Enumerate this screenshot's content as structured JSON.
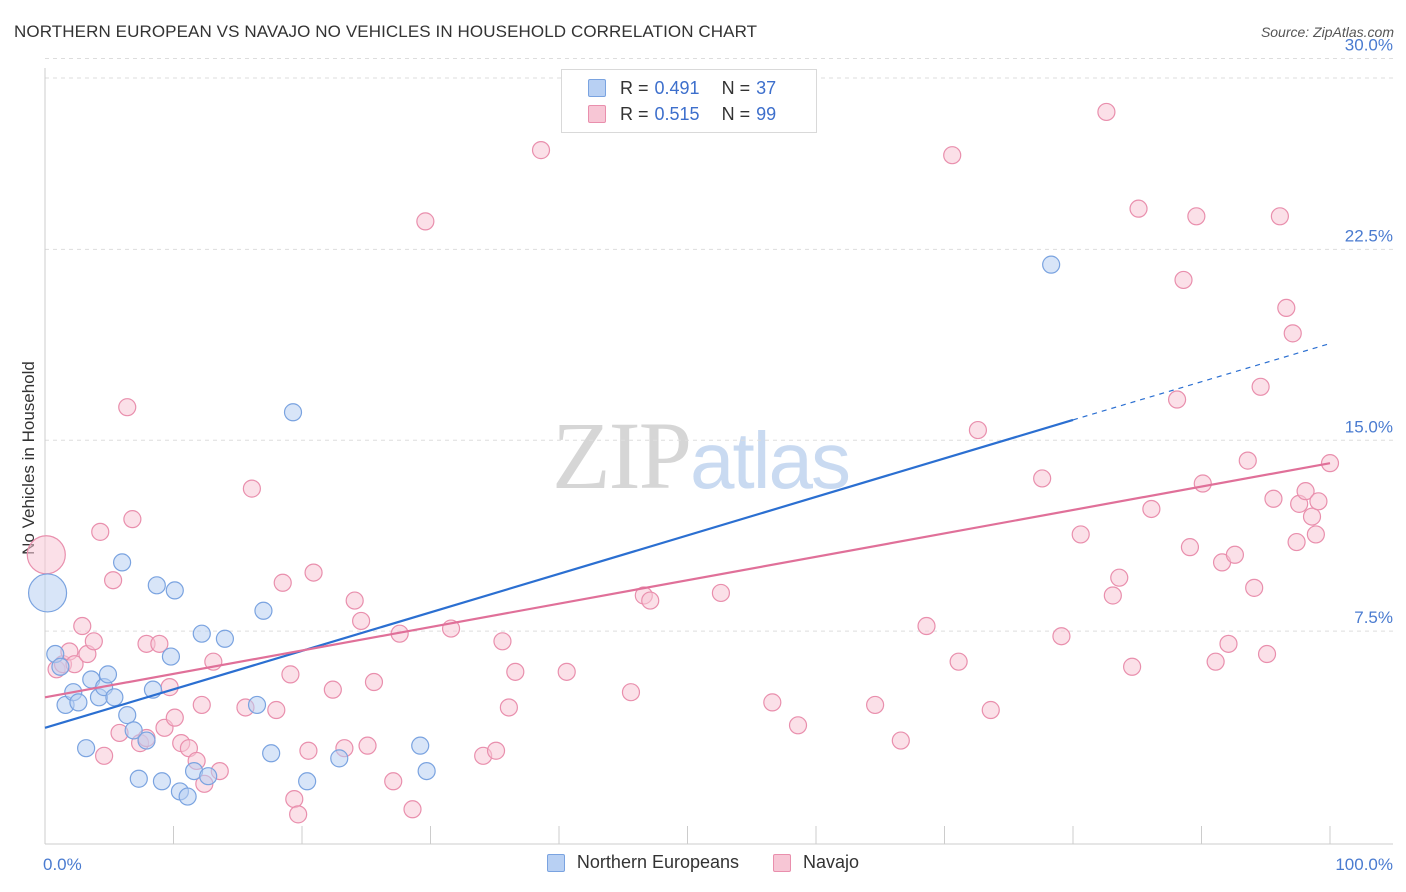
{
  "title": "NORTHERN EUROPEAN VS NAVAJO NO VEHICLES IN HOUSEHOLD CORRELATION CHART",
  "source": "Source: ZipAtlas.com",
  "watermark": {
    "zip": "ZIP",
    "atlas": "atlas"
  },
  "colors": {
    "blue_fill": "#b8d0f3",
    "blue_stroke": "#7aa3e0",
    "blue_line": "#2b6fd1",
    "pink_fill": "#f7c6d5",
    "pink_stroke": "#e98fad",
    "pink_line": "#e07099",
    "grid": "#dddddd",
    "axis_text": "#4a7bd0"
  },
  "legend": {
    "series": [
      {
        "r_label": "R =",
        "r_value": "0.491",
        "n_label": "N =",
        "n_value": "37"
      },
      {
        "r_label": "R =",
        "r_value": "0.515",
        "n_label": "N =",
        "n_value": "99"
      }
    ]
  },
  "bottom_legend": [
    "Northern Europeans",
    "Navajo"
  ],
  "chart_data": {
    "type": "scatter",
    "title": "NORTHERN EUROPEAN VS NAVAJO NO VEHICLES IN HOUSEHOLD CORRELATION CHART",
    "xlabel": "",
    "ylabel": "No Vehicles in Household",
    "x_tick_labels": [
      "0.0%",
      "100.0%"
    ],
    "y_tick_labels": [
      "7.5%",
      "15.0%",
      "22.5%",
      "30.0%"
    ],
    "y_ticks": [
      7.5,
      15.0,
      22.5,
      30.0
    ],
    "xlim": [
      0,
      100
    ],
    "ylim": [
      0,
      30.8
    ],
    "grid": true,
    "legend_position": "top-center",
    "series": [
      {
        "name": "Northern Europeans",
        "r": 0.491,
        "n": 37,
        "trend": {
          "x0": 0,
          "y0": 3.7,
          "x1": 80,
          "y1": 15.8,
          "dashed_to_x": 100,
          "dashed_to_y": 18.8
        },
        "points": [
          {
            "x": 0.2,
            "y": 9.0,
            "big": true
          },
          {
            "x": 0.8,
            "y": 6.6
          },
          {
            "x": 1.2,
            "y": 6.1
          },
          {
            "x": 1.6,
            "y": 4.6
          },
          {
            "x": 2.2,
            "y": 5.1
          },
          {
            "x": 2.6,
            "y": 4.7
          },
          {
            "x": 3.2,
            "y": 2.9
          },
          {
            "x": 3.6,
            "y": 5.6
          },
          {
            "x": 4.2,
            "y": 4.9
          },
          {
            "x": 4.6,
            "y": 5.3
          },
          {
            "x": 4.9,
            "y": 5.8
          },
          {
            "x": 5.4,
            "y": 4.9
          },
          {
            "x": 6.0,
            "y": 10.2
          },
          {
            "x": 6.4,
            "y": 4.2
          },
          {
            "x": 6.9,
            "y": 3.6
          },
          {
            "x": 7.3,
            "y": 1.7
          },
          {
            "x": 7.9,
            "y": 3.2
          },
          {
            "x": 8.4,
            "y": 5.2
          },
          {
            "x": 8.7,
            "y": 9.3
          },
          {
            "x": 9.1,
            "y": 1.6
          },
          {
            "x": 9.8,
            "y": 6.5
          },
          {
            "x": 10.1,
            "y": 9.1
          },
          {
            "x": 10.5,
            "y": 1.2
          },
          {
            "x": 11.1,
            "y": 1.0
          },
          {
            "x": 11.6,
            "y": 2.0
          },
          {
            "x": 12.2,
            "y": 7.4
          },
          {
            "x": 12.7,
            "y": 1.8
          },
          {
            "x": 14.0,
            "y": 7.2
          },
          {
            "x": 16.5,
            "y": 4.6
          },
          {
            "x": 17.0,
            "y": 8.3
          },
          {
            "x": 17.6,
            "y": 2.7
          },
          {
            "x": 19.3,
            "y": 16.1
          },
          {
            "x": 20.4,
            "y": 1.6
          },
          {
            "x": 22.9,
            "y": 2.5
          },
          {
            "x": 29.2,
            "y": 3.0
          },
          {
            "x": 29.7,
            "y": 2.0
          },
          {
            "x": 78.3,
            "y": 21.9
          }
        ]
      },
      {
        "name": "Navajo",
        "r": 0.515,
        "n": 99,
        "trend": {
          "x0": 0,
          "y0": 4.9,
          "x1": 100,
          "y1": 14.1
        },
        "points": [
          {
            "x": 0.1,
            "y": 10.5,
            "big": true
          },
          {
            "x": 0.9,
            "y": 6.0
          },
          {
            "x": 1.4,
            "y": 6.2
          },
          {
            "x": 1.9,
            "y": 6.7
          },
          {
            "x": 2.3,
            "y": 6.2
          },
          {
            "x": 2.9,
            "y": 7.7
          },
          {
            "x": 3.3,
            "y": 6.6
          },
          {
            "x": 3.8,
            "y": 7.1
          },
          {
            "x": 4.3,
            "y": 11.4
          },
          {
            "x": 4.6,
            "y": 2.6
          },
          {
            "x": 5.3,
            "y": 9.5
          },
          {
            "x": 5.8,
            "y": 3.5
          },
          {
            "x": 6.4,
            "y": 16.3
          },
          {
            "x": 6.8,
            "y": 11.9
          },
          {
            "x": 7.4,
            "y": 3.1
          },
          {
            "x": 7.9,
            "y": 3.3
          },
          {
            "x": 7.9,
            "y": 7.0
          },
          {
            "x": 8.9,
            "y": 7.0
          },
          {
            "x": 9.3,
            "y": 3.7
          },
          {
            "x": 9.7,
            "y": 5.3
          },
          {
            "x": 10.1,
            "y": 4.1
          },
          {
            "x": 10.6,
            "y": 3.1
          },
          {
            "x": 11.2,
            "y": 2.9
          },
          {
            "x": 11.8,
            "y": 2.4
          },
          {
            "x": 12.2,
            "y": 4.6
          },
          {
            "x": 12.4,
            "y": 1.5
          },
          {
            "x": 13.1,
            "y": 6.3
          },
          {
            "x": 13.6,
            "y": 2.0
          },
          {
            "x": 15.6,
            "y": 4.5
          },
          {
            "x": 16.1,
            "y": 13.1
          },
          {
            "x": 18.0,
            "y": 4.4
          },
          {
            "x": 18.5,
            "y": 9.4
          },
          {
            "x": 19.1,
            "y": 5.8
          },
          {
            "x": 19.4,
            "y": 0.9
          },
          {
            "x": 19.7,
            "y": 0.3
          },
          {
            "x": 20.5,
            "y": 2.8
          },
          {
            "x": 20.9,
            "y": 9.8
          },
          {
            "x": 22.4,
            "y": 5.2
          },
          {
            "x": 23.3,
            "y": 2.9
          },
          {
            "x": 24.1,
            "y": 8.7
          },
          {
            "x": 24.6,
            "y": 7.9
          },
          {
            "x": 25.1,
            "y": 3.0
          },
          {
            "x": 25.6,
            "y": 5.5
          },
          {
            "x": 27.1,
            "y": 1.6
          },
          {
            "x": 27.6,
            "y": 7.4
          },
          {
            "x": 28.6,
            "y": 0.5
          },
          {
            "x": 29.6,
            "y": 23.6
          },
          {
            "x": 31.6,
            "y": 7.6
          },
          {
            "x": 34.1,
            "y": 2.6
          },
          {
            "x": 35.1,
            "y": 2.8
          },
          {
            "x": 35.6,
            "y": 7.1
          },
          {
            "x": 36.1,
            "y": 4.5
          },
          {
            "x": 36.6,
            "y": 5.9
          },
          {
            "x": 38.6,
            "y": 26.4
          },
          {
            "x": 40.6,
            "y": 5.9
          },
          {
            "x": 45.6,
            "y": 5.1
          },
          {
            "x": 46.6,
            "y": 8.9
          },
          {
            "x": 47.1,
            "y": 8.7
          },
          {
            "x": 52.6,
            "y": 9.0
          },
          {
            "x": 56.6,
            "y": 4.7
          },
          {
            "x": 58.6,
            "y": 3.8
          },
          {
            "x": 64.6,
            "y": 4.6
          },
          {
            "x": 66.6,
            "y": 3.2
          },
          {
            "x": 68.6,
            "y": 7.7
          },
          {
            "x": 70.6,
            "y": 26.2
          },
          {
            "x": 71.1,
            "y": 6.3
          },
          {
            "x": 72.6,
            "y": 15.4
          },
          {
            "x": 73.6,
            "y": 4.4
          },
          {
            "x": 77.6,
            "y": 13.5
          },
          {
            "x": 79.1,
            "y": 7.3
          },
          {
            "x": 80.6,
            "y": 11.3
          },
          {
            "x": 82.6,
            "y": 27.9
          },
          {
            "x": 83.1,
            "y": 8.9
          },
          {
            "x": 83.6,
            "y": 9.6
          },
          {
            "x": 84.6,
            "y": 6.1
          },
          {
            "x": 85.1,
            "y": 24.1
          },
          {
            "x": 86.1,
            "y": 12.3
          },
          {
            "x": 88.1,
            "y": 16.6
          },
          {
            "x": 88.6,
            "y": 21.3
          },
          {
            "x": 89.1,
            "y": 10.8
          },
          {
            "x": 89.6,
            "y": 23.8
          },
          {
            "x": 90.1,
            "y": 13.3
          },
          {
            "x": 91.1,
            "y": 6.3
          },
          {
            "x": 91.6,
            "y": 10.2
          },
          {
            "x": 92.1,
            "y": 7.0
          },
          {
            "x": 92.6,
            "y": 10.5
          },
          {
            "x": 93.6,
            "y": 14.2
          },
          {
            "x": 94.1,
            "y": 9.2
          },
          {
            "x": 94.6,
            "y": 17.1
          },
          {
            "x": 95.1,
            "y": 6.6
          },
          {
            "x": 95.6,
            "y": 12.7
          },
          {
            "x": 96.1,
            "y": 23.8
          },
          {
            "x": 96.6,
            "y": 20.2
          },
          {
            "x": 97.1,
            "y": 19.2
          },
          {
            "x": 97.4,
            "y": 11.0
          },
          {
            "x": 97.6,
            "y": 12.5
          },
          {
            "x": 98.1,
            "y": 13.0
          },
          {
            "x": 98.6,
            "y": 12.0
          },
          {
            "x": 98.9,
            "y": 11.3
          },
          {
            "x": 99.1,
            "y": 12.6
          },
          {
            "x": 100.0,
            "y": 14.1
          }
        ]
      }
    ]
  }
}
